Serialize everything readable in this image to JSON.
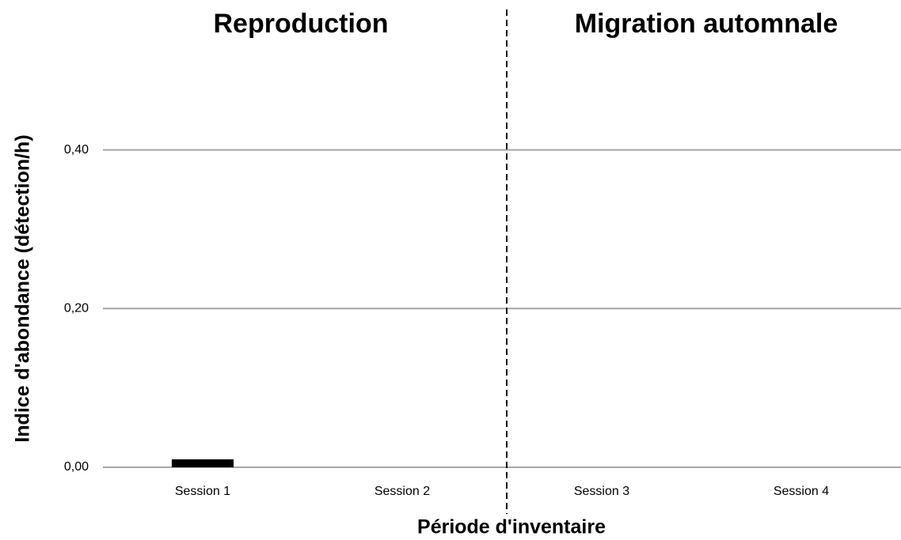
{
  "chart_data": {
    "type": "bar",
    "categories": [
      "Session 1",
      "Session 2",
      "Session 3",
      "Session 4"
    ],
    "values": [
      0.01,
      0,
      0,
      0
    ],
    "color": "#000000",
    "ylim": [
      0,
      0.58
    ],
    "yticks": [
      {
        "value": 0,
        "label": "0,00"
      },
      {
        "value": 0.2,
        "label": "0,20"
      },
      {
        "value": 0.4,
        "label": "0,40"
      }
    ],
    "grid": true,
    "x_label": "Période d'inventaire",
    "y_label": "Indice d'abondance (détection/h)",
    "annotations": [
      "Reproduction",
      "Migration automnale"
    ]
  }
}
